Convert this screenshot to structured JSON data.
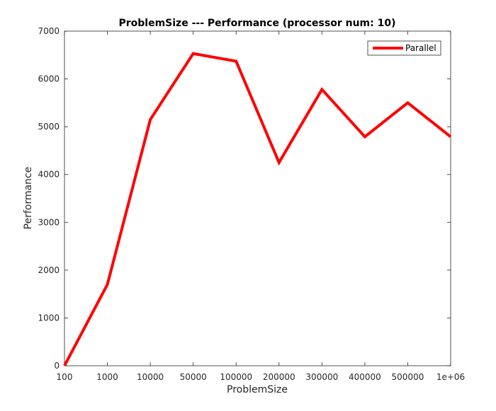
{
  "chart_data": {
    "type": "line",
    "title": "ProblemSize --- Performance (processor num: 10)",
    "xlabel": "ProblemSize",
    "ylabel": "Performance",
    "categories": [
      "100",
      "1000",
      "10000",
      "50000",
      "100000",
      "200000",
      "300000",
      "400000",
      "500000",
      "1e+06"
    ],
    "y_ticks": [
      "0",
      "1000",
      "2000",
      "3000",
      "4000",
      "5000",
      "6000",
      "7000"
    ],
    "ylim": [
      0,
      7000
    ],
    "grid": false,
    "legend_position": "top-right",
    "series": [
      {
        "name": "Parallel",
        "color": "#ff0000",
        "values": [
          0,
          1700,
          5150,
          6530,
          6370,
          4250,
          5780,
          4790,
          5500,
          4790
        ]
      }
    ]
  }
}
